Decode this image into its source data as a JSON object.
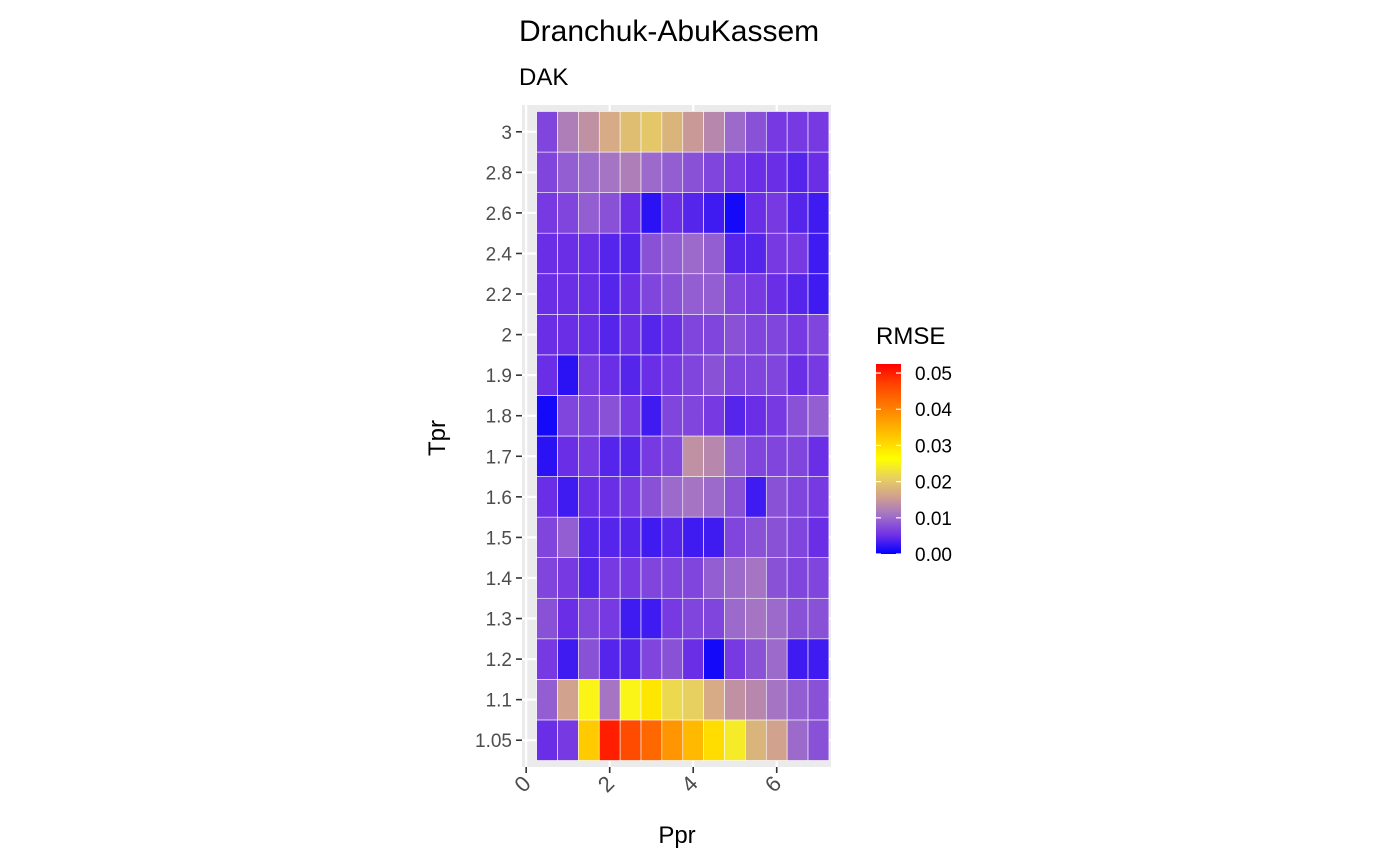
{
  "chart_data": {
    "type": "heatmap",
    "title": "Dranchuk-AbuKassem",
    "subtitle": "DAK",
    "xlabel": "Ppr",
    "ylabel": "Tpr",
    "x": [
      0.5,
      1.0,
      1.5,
      2.0,
      2.5,
      3.0,
      3.5,
      4.0,
      4.5,
      5.0,
      5.5,
      6.0,
      6.5,
      7.0
    ],
    "y": [
      "1.05",
      "1.1",
      "1.2",
      "1.3",
      "1.4",
      "1.5",
      "1.6",
      "1.7",
      "1.8",
      "1.9",
      "2",
      "2.2",
      "2.4",
      "2.6",
      "2.8",
      "3"
    ],
    "x_ticks": [
      "0",
      "2",
      "4",
      "6"
    ],
    "x_tick_values": [
      0,
      2,
      4,
      6
    ],
    "xlim": [
      -0.1,
      7.3
    ],
    "values": [
      [
        0.005,
        0.006,
        0.032,
        0.05,
        0.046,
        0.043,
        0.038,
        0.034,
        0.03,
        0.024,
        0.018,
        0.016,
        0.01,
        0.008
      ],
      [
        0.009,
        0.016,
        0.025,
        0.011,
        0.025,
        0.029,
        0.022,
        0.021,
        0.017,
        0.014,
        0.013,
        0.011,
        0.009,
        0.008
      ],
      [
        0.006,
        0.003,
        0.008,
        0.004,
        0.004,
        0.007,
        0.008,
        0.005,
        0.001,
        0.006,
        0.008,
        0.01,
        0.003,
        0.003
      ],
      [
        0.008,
        0.005,
        0.007,
        0.006,
        0.003,
        0.003,
        0.006,
        0.007,
        0.007,
        0.01,
        0.011,
        0.01,
        0.008,
        0.008
      ],
      [
        0.007,
        0.006,
        0.004,
        0.006,
        0.006,
        0.007,
        0.007,
        0.007,
        0.009,
        0.01,
        0.011,
        0.008,
        0.007,
        0.007
      ],
      [
        0.007,
        0.009,
        0.004,
        0.004,
        0.004,
        0.003,
        0.004,
        0.003,
        0.003,
        0.007,
        0.008,
        0.008,
        0.007,
        0.005
      ],
      [
        0.005,
        0.003,
        0.005,
        0.005,
        0.006,
        0.008,
        0.01,
        0.011,
        0.01,
        0.008,
        0.003,
        0.008,
        0.007,
        0.006
      ],
      [
        0.002,
        0.005,
        0.006,
        0.004,
        0.004,
        0.006,
        0.007,
        0.014,
        0.013,
        0.009,
        0.007,
        0.007,
        0.007,
        0.005
      ],
      [
        0.001,
        0.007,
        0.007,
        0.008,
        0.006,
        0.003,
        0.007,
        0.007,
        0.006,
        0.004,
        0.005,
        0.006,
        0.008,
        0.009
      ],
      [
        0.005,
        0.002,
        0.006,
        0.005,
        0.004,
        0.005,
        0.006,
        0.007,
        0.008,
        0.007,
        0.007,
        0.007,
        0.005,
        0.006
      ],
      [
        0.005,
        0.005,
        0.005,
        0.004,
        0.005,
        0.004,
        0.005,
        0.007,
        0.007,
        0.008,
        0.007,
        0.007,
        0.006,
        0.007
      ],
      [
        0.005,
        0.005,
        0.005,
        0.004,
        0.005,
        0.007,
        0.008,
        0.009,
        0.009,
        0.007,
        0.006,
        0.005,
        0.004,
        0.003
      ],
      [
        0.005,
        0.005,
        0.005,
        0.004,
        0.004,
        0.008,
        0.009,
        0.01,
        0.009,
        0.004,
        0.004,
        0.006,
        0.006,
        0.003
      ],
      [
        0.006,
        0.007,
        0.009,
        0.008,
        0.005,
        0.002,
        0.005,
        0.004,
        0.003,
        0.001,
        0.005,
        0.006,
        0.004,
        0.003
      ],
      [
        0.007,
        0.009,
        0.01,
        0.011,
        0.012,
        0.01,
        0.009,
        0.008,
        0.007,
        0.006,
        0.005,
        0.005,
        0.004,
        0.005
      ],
      [
        0.007,
        0.012,
        0.014,
        0.017,
        0.019,
        0.02,
        0.018,
        0.015,
        0.013,
        0.01,
        0.008,
        0.006,
        0.006,
        0.006
      ]
    ],
    "legend": {
      "title": "RMSE",
      "ticks": [
        "0.00",
        "0.01",
        "0.02",
        "0.03",
        "0.04",
        "0.05"
      ],
      "tick_values": [
        0,
        0.01,
        0.02,
        0.03,
        0.04,
        0.05
      ],
      "range": [
        0,
        0.0525
      ],
      "colors": [
        "#0000ff",
        "#7030e6",
        "#a070c8",
        "#d0a090",
        "#e8d060",
        "#ffff00",
        "#ffd000",
        "#ffa000",
        "#ff7000",
        "#ff4000",
        "#ff0000"
      ],
      "placement": "right"
    },
    "grid": true,
    "panel_background": "#ebebeb",
    "grid_color": "#ffffff"
  }
}
